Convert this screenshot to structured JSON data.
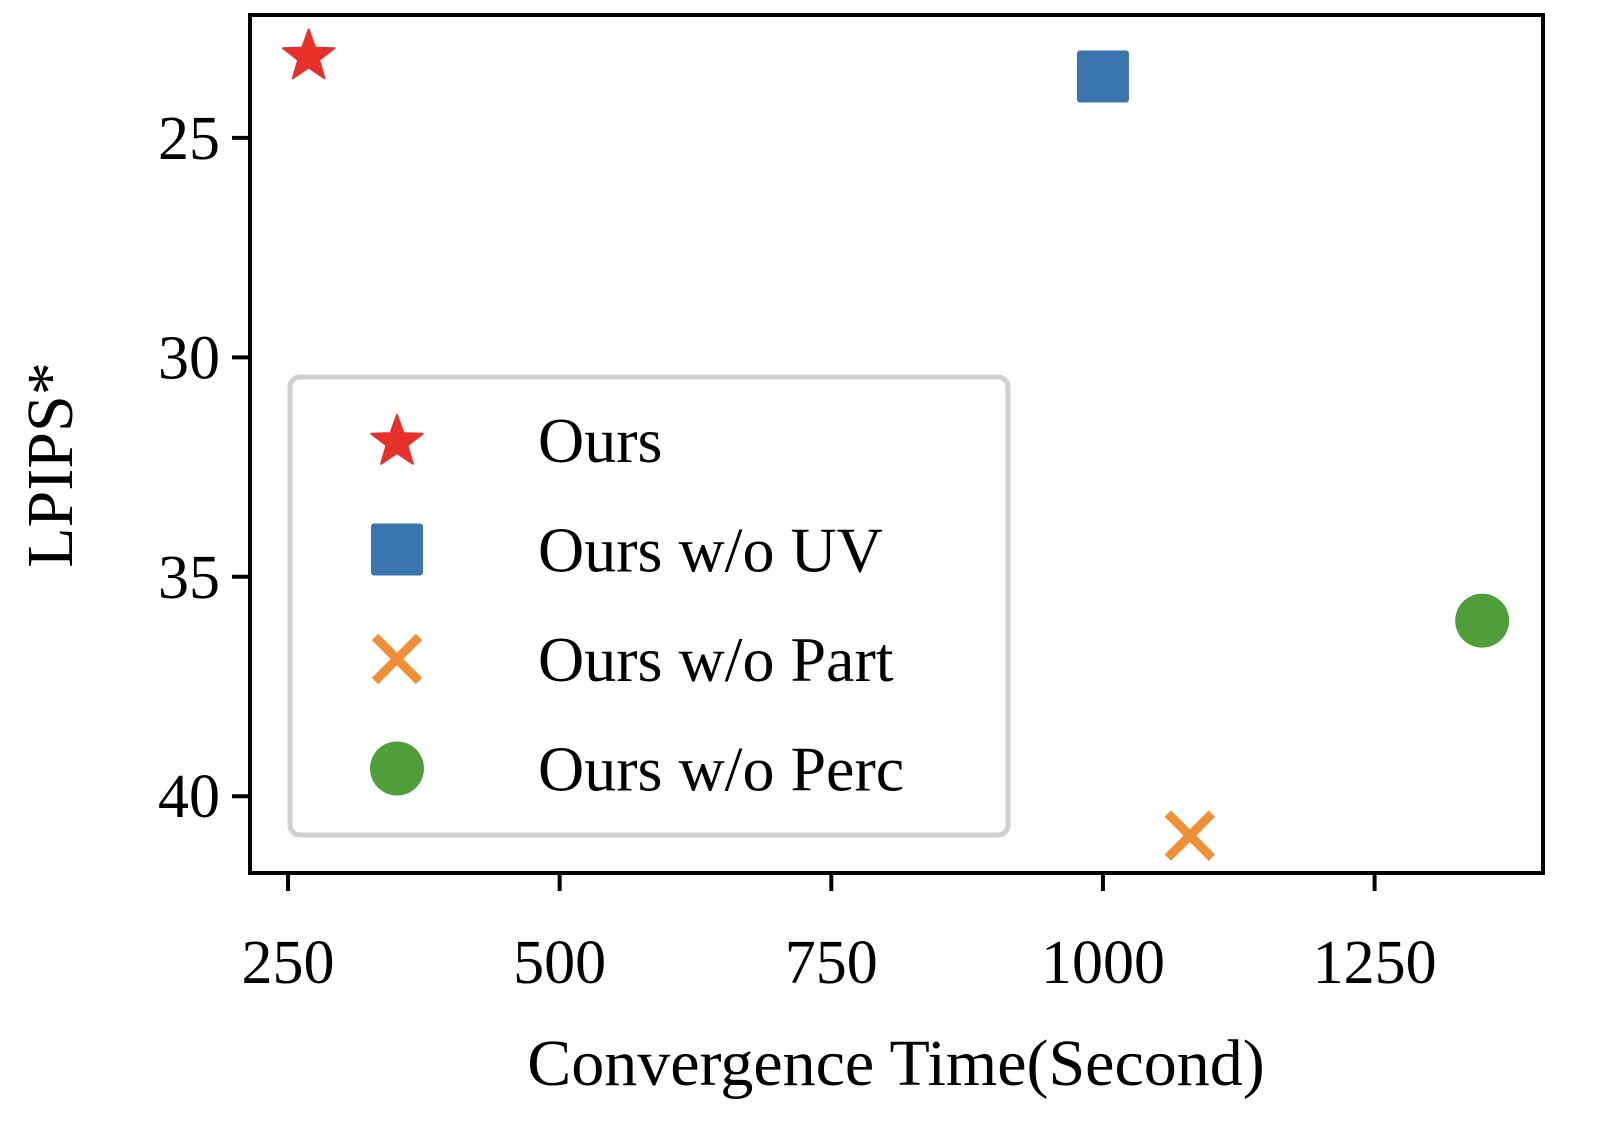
{
  "chart_data": {
    "type": "scatter",
    "title": "",
    "xlabel": "Convergence Time(Second)",
    "ylabel": "LPIPS*",
    "xlim": [
      215,
      1405
    ],
    "ylim": [
      41.75,
      22.2
    ],
    "y_inverted": true,
    "x_ticks": [
      "250",
      "500",
      "750",
      "1000",
      "1250"
    ],
    "y_ticks": [
      "25",
      "30",
      "35",
      "40"
    ],
    "grid": false,
    "legend_position": "lower-left",
    "series": [
      {
        "name": "Ours",
        "marker": "star",
        "color": "#e8312a",
        "x": 269,
        "y": 23.1
      },
      {
        "name": "Ours w/o UV",
        "marker": "square",
        "color": "#3a75b0",
        "x": 1000,
        "y": 23.6
      },
      {
        "name": "Ours w/o Part",
        "marker": "x",
        "color": "#f28e33",
        "x": 1080,
        "y": 40.9
      },
      {
        "name": "Ours w/o Perc",
        "marker": "circle",
        "color": "#4f9e3a",
        "x": 1349,
        "y": 36.0
      }
    ]
  }
}
